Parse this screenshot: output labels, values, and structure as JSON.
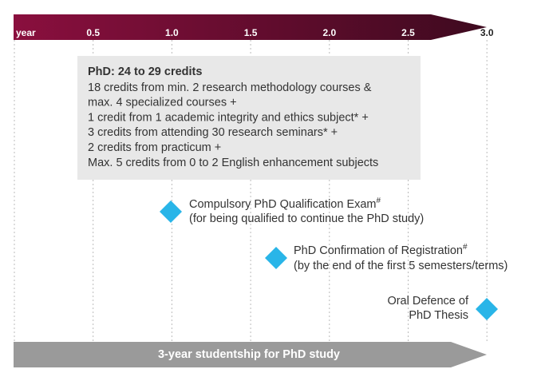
{
  "timeline": {
    "unit": "year",
    "ticks": [
      "0.5",
      "1.0",
      "1.5",
      "2.0",
      "2.5",
      "3.0"
    ]
  },
  "requirements": {
    "title": "PhD: 24 to 29 credits",
    "lines": [
      "18 credits from min. 2 research methodology courses &",
      "max. 4 specialized courses +",
      "1 credit from 1 academic integrity and ethics subject* +",
      "3 credits from attending 30 research seminars* +",
      "2 credits from practicum +",
      "Max. 5 credits from 0 to 2 English enhancement subjects"
    ]
  },
  "milestones": [
    {
      "title": "Compulsory PhD Qualification Exam",
      "mark": "#",
      "note": "(for being qualified to continue the PhD study)"
    },
    {
      "title": "PhD Confirmation of Registration",
      "mark": "#",
      "note": "(by the end of the first 5 semesters/terms)"
    },
    {
      "title": "Oral Defence of",
      "note": "PhD Thesis"
    }
  ],
  "studentship": "3-year studentship for PhD study"
}
